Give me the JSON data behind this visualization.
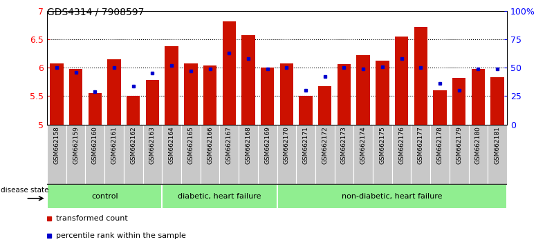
{
  "title": "GDS4314 / 7908597",
  "samples": [
    "GSM662158",
    "GSM662159",
    "GSM662160",
    "GSM662161",
    "GSM662162",
    "GSM662163",
    "GSM662164",
    "GSM662165",
    "GSM662166",
    "GSM662167",
    "GSM662168",
    "GSM662169",
    "GSM662170",
    "GSM662171",
    "GSM662172",
    "GSM662173",
    "GSM662174",
    "GSM662175",
    "GSM662176",
    "GSM662177",
    "GSM662178",
    "GSM662179",
    "GSM662180",
    "GSM662181"
  ],
  "bar_values": [
    6.08,
    5.98,
    5.55,
    6.15,
    5.5,
    5.78,
    6.38,
    6.08,
    6.04,
    6.82,
    6.57,
    6.0,
    6.07,
    5.5,
    5.68,
    6.06,
    6.22,
    6.13,
    6.55,
    6.72,
    5.6,
    5.82,
    5.98,
    5.83
  ],
  "percentile_rank": [
    50,
    46,
    29,
    50,
    34,
    45,
    52,
    47,
    49,
    63,
    58,
    49,
    50,
    30,
    42,
    50,
    49,
    51,
    58,
    50,
    36,
    30,
    49,
    49
  ],
  "group_labels": [
    "control",
    "diabetic, heart failure",
    "non-diabetic, heart failure"
  ],
  "group_starts": [
    0,
    6,
    12
  ],
  "group_ends": [
    5,
    11,
    23
  ],
  "group_color": "#90ee90",
  "ylim": [
    5.0,
    7.0
  ],
  "yticks": [
    5.0,
    5.5,
    6.0,
    6.5,
    7.0
  ],
  "y2_ticks": [
    0,
    25,
    50,
    75,
    100
  ],
  "y2_tick_labels": [
    "0",
    "25",
    "50",
    "75",
    "100%"
  ],
  "bar_color": "#cc1100",
  "pct_color": "#0000cc",
  "bg_tick_color": "#c8c8c8",
  "bar_width": 0.7,
  "title_fontsize": 10,
  "legend_entries": [
    "transformed count",
    "percentile rank within the sample"
  ],
  "legend_colors": [
    "#cc1100",
    "#0000cc"
  ]
}
